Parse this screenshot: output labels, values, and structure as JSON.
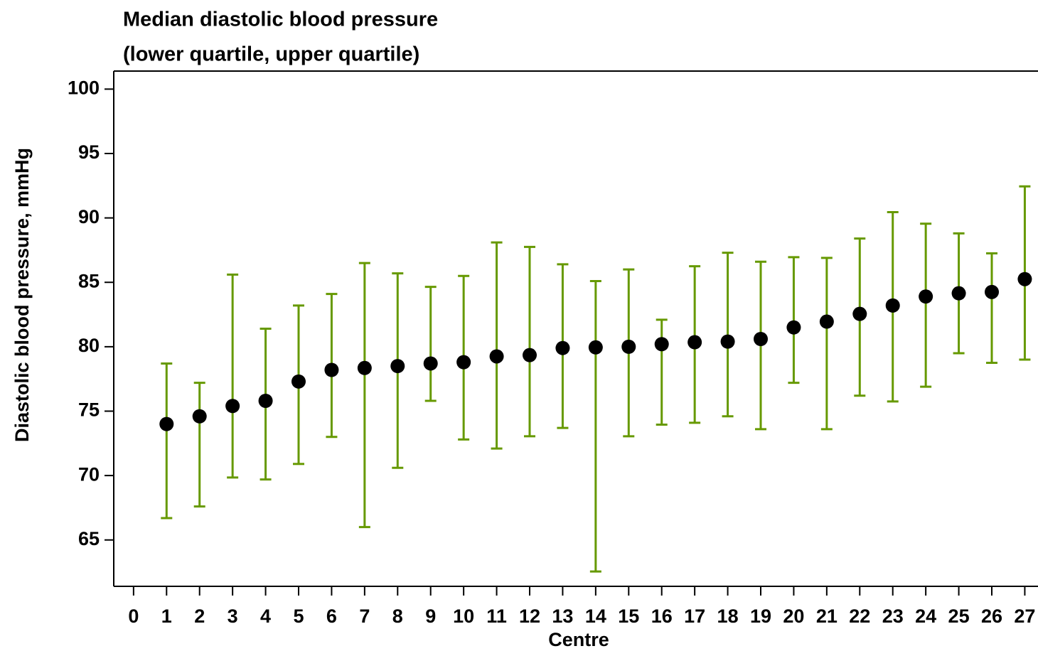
{
  "chart_data": {
    "type": "errorbar",
    "title": "Median diastolic blood pressure",
    "subtitle": "(lower quartile, upper quartile)",
    "x_label": "Centre",
    "y_label": "Diastolic blood pressure, mmHg",
    "x": [
      1,
      2,
      3,
      4,
      5,
      6,
      7,
      8,
      9,
      10,
      11,
      12,
      13,
      14,
      15,
      16,
      17,
      18,
      19,
      20,
      21,
      22,
      23,
      24,
      25,
      26,
      27
    ],
    "values": [
      74.0,
      74.6,
      75.4,
      75.8,
      77.3,
      78.2,
      78.35,
      78.5,
      78.7,
      78.8,
      79.25,
      79.35,
      79.9,
      79.95,
      80.0,
      80.2,
      80.35,
      80.4,
      80.6,
      81.5,
      81.95,
      82.55,
      83.2,
      83.9,
      84.15,
      84.25,
      85.25
    ],
    "lower": [
      66.7,
      67.6,
      69.85,
      69.7,
      70.9,
      73.0,
      66.0,
      70.6,
      75.8,
      72.8,
      72.1,
      73.05,
      73.7,
      62.55,
      73.05,
      73.95,
      74.1,
      74.6,
      73.6,
      77.2,
      73.6,
      76.2,
      75.75,
      76.9,
      79.5,
      78.75,
      79.0
    ],
    "upper": [
      78.7,
      77.2,
      85.6,
      81.4,
      83.2,
      84.1,
      86.5,
      85.7,
      84.65,
      85.5,
      88.1,
      87.75,
      86.4,
      85.1,
      86.0,
      82.1,
      86.25,
      87.3,
      86.6,
      86.95,
      86.9,
      88.4,
      90.45,
      89.55,
      88.8,
      87.25,
      92.45
    ],
    "marker_color": "#000000",
    "error_color": "#669900",
    "xlim": [
      -0.6,
      27.4
    ],
    "ylim": [
      61.4,
      101.4
    ],
    "xticks": [
      0,
      1,
      2,
      3,
      4,
      5,
      6,
      7,
      8,
      9,
      10,
      11,
      12,
      13,
      14,
      15,
      16,
      17,
      18,
      19,
      20,
      21,
      22,
      23,
      24,
      25,
      26,
      27
    ],
    "yticks": [
      65,
      70,
      75,
      80,
      85,
      90,
      95,
      100
    ]
  }
}
